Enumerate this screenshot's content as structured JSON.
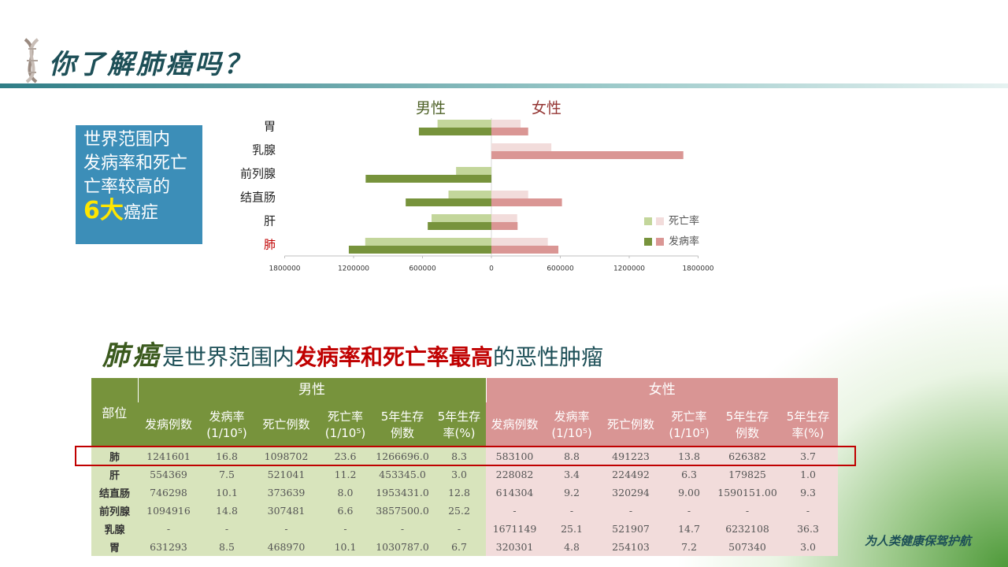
{
  "header": {
    "title": "你了解肺癌吗？"
  },
  "callout": {
    "lines": [
      "世界范围内",
      "发病率和死亡",
      "亡率较高的"
    ],
    "emphasis": "6大",
    "rest": "癌症"
  },
  "chart_data": {
    "type": "butterfly",
    "sides": [
      "男性",
      "女性"
    ],
    "side_colors": [
      "#4f6228",
      "#953735"
    ],
    "categories": [
      "胃",
      "乳腺",
      "前列腺",
      "结直肠",
      "肝",
      "肺"
    ],
    "highlight_category": 5,
    "series": [
      {
        "name": "死亡率",
        "colors": [
          "#c3d69b",
          "#f2dcdb"
        ],
        "values": [
          [
            468970,
            null,
            307481,
            373639,
            521041,
            1098702
          ],
          [
            254103,
            521907,
            null,
            320294,
            224492,
            491223
          ]
        ]
      },
      {
        "name": "发病率",
        "colors": [
          "#77933c",
          "#da9694"
        ],
        "values": [
          [
            631293,
            null,
            1094916,
            746298,
            554369,
            1241601
          ],
          [
            320301,
            1671149,
            null,
            614304,
            228082,
            583100
          ]
        ]
      }
    ],
    "xlim": [
      -1800000,
      1800000
    ],
    "xticks": [
      {
        "value": -1800000,
        "label": "1800000"
      },
      {
        "value": -1200000,
        "label": "1200000"
      },
      {
        "value": -600000,
        "label": "600000"
      },
      0,
      600000,
      1200000,
      1800000
    ]
  },
  "headline": {
    "parts": [
      {
        "text": "肺癌",
        "style": "brush"
      },
      {
        "text": "是世界范围内",
        "style": "plain"
      },
      {
        "text": "发病率和死亡率最高",
        "style": "alert"
      },
      {
        "text": "的恶性肿瘤",
        "style": "plain"
      }
    ]
  },
  "table": {
    "corner": "部位",
    "highlight_row": 0,
    "groups": [
      {
        "name": "男性",
        "color": "#77933c",
        "fill": "#d8e4bc",
        "columns": [
          "发病例数",
          [
            "发病率",
            "(1/10⁵)"
          ],
          "死亡例数",
          [
            "死亡率",
            "(1/10⁵)"
          ],
          [
            "5年生存",
            "例数"
          ],
          [
            "5年生存",
            "率(%)"
          ]
        ]
      },
      {
        "name": "女性",
        "color": "#d99594",
        "fill": "#f2dcdb",
        "columns": [
          "发病例数",
          [
            "发病率",
            "(1/10⁵)"
          ],
          "死亡例数",
          [
            "死亡率",
            "(1/10⁵)"
          ],
          [
            "5年生存",
            "例数"
          ],
          [
            "5年生存",
            "率(%)"
          ]
        ]
      }
    ],
    "rows": [
      {
        "label": "肺",
        "cells": [
          "1241601",
          "16.8",
          "1098702",
          "23.6",
          "1266696.0",
          "8.3",
          "583100",
          "8.8",
          "491223",
          "13.8",
          "626382",
          "3.7"
        ]
      },
      {
        "label": "肝",
        "cells": [
          "554369",
          "7.5",
          "521041",
          "11.2",
          "453345.0",
          "3.0",
          "228082",
          "3.4",
          "224492",
          "6.3",
          "179825",
          "1.0"
        ]
      },
      {
        "label": "结直肠",
        "cells": [
          "746298",
          "10.1",
          "373639",
          "8.0",
          "1953431.0",
          "12.8",
          "614304",
          "9.2",
          "320294",
          "9.00",
          "1590151.00",
          "9.3"
        ]
      },
      {
        "label": "前列腺",
        "cells": [
          "1094916",
          "14.8",
          "307481",
          "6.6",
          "3857500.0",
          "25.2",
          "-",
          "-",
          "-",
          "-",
          "-",
          "-"
        ]
      },
      {
        "label": "乳腺",
        "cells": [
          "-",
          "-",
          "-",
          "-",
          "-",
          "-",
          "1671149",
          "25.1",
          "521907",
          "14.7",
          "6232108",
          "36.3"
        ]
      },
      {
        "label": "胃",
        "cells": [
          "631293",
          "8.5",
          "468970",
          "10.1",
          "1030787.0",
          "6.7",
          "320301",
          "4.8",
          "254103",
          "7.2",
          "507340",
          "3.0"
        ]
      }
    ]
  },
  "footer": {
    "slogan": "为人类健康保驾护航"
  }
}
